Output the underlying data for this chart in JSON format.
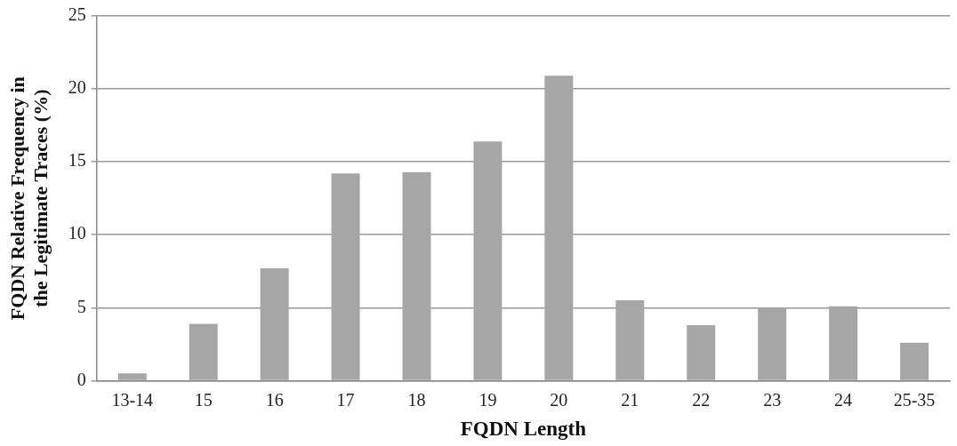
{
  "chart_data": {
    "type": "bar",
    "xlabel": "FQDN Length",
    "ylabel": "FQDN Relative Frequency in the Legitimate Traces (%)",
    "categories": [
      "13-14",
      "15",
      "16",
      "17",
      "18",
      "19",
      "20",
      "21",
      "22",
      "23",
      "24",
      "25-35"
    ],
    "values": [
      0.5,
      3.9,
      7.7,
      14.2,
      14.3,
      16.4,
      20.9,
      5.5,
      3.8,
      5.0,
      5.1,
      2.6
    ],
    "color": "#a6a6a6",
    "ylim": [
      0,
      25
    ],
    "yticks": [
      0,
      5,
      10,
      15,
      20,
      25
    ],
    "grid": "y"
  }
}
